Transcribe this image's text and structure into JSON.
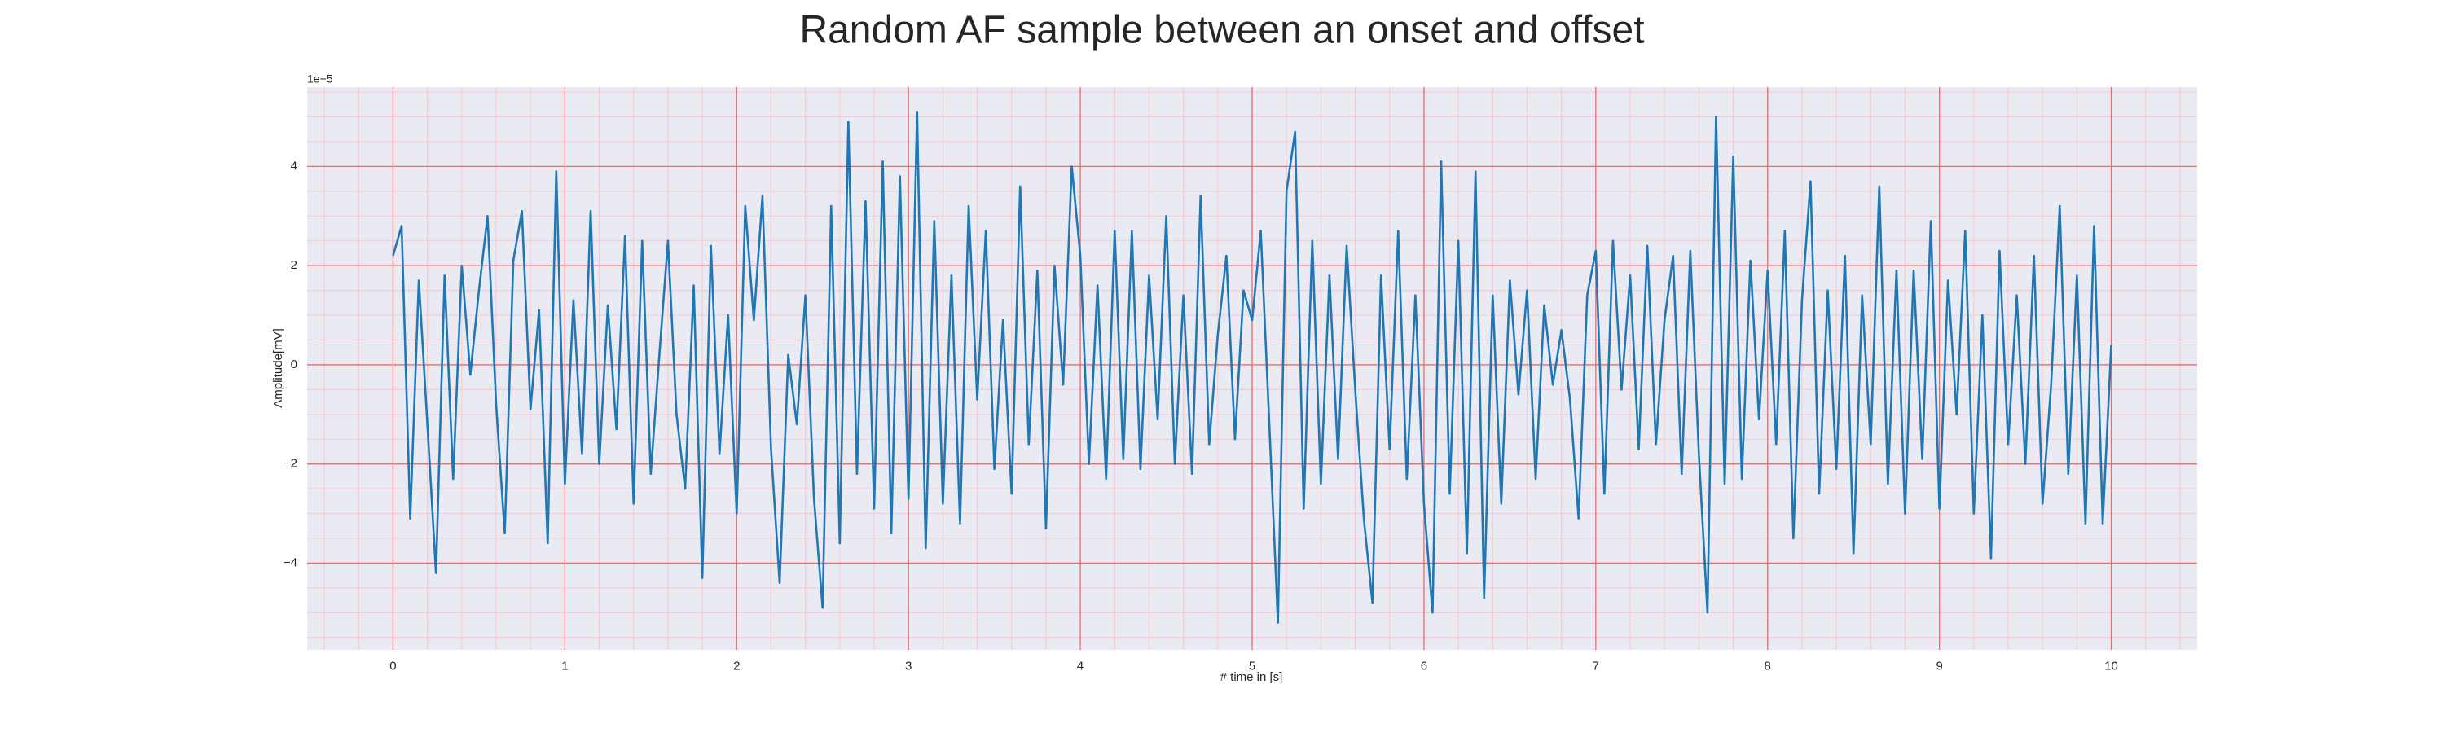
{
  "chart_data": {
    "type": "line",
    "title": "Random AF sample between an onset and offset",
    "xlabel": "# time in [s]",
    "ylabel": "Amplitude[mV]",
    "y_offset_label": "1e−5",
    "color": "#1f77b4",
    "grid": true,
    "grid_color": "#ee6a6a",
    "minor_grid": true,
    "minor_grid_color": "#f5c9cd",
    "background": "#eaeaf2",
    "xlim": [
      -0.5,
      10.5
    ],
    "ylim": [
      -5.75,
      5.6
    ],
    "xticks": [
      0,
      1,
      2,
      3,
      4,
      5,
      6,
      7,
      8,
      9,
      10
    ],
    "yticks": [
      {
        "value": -4,
        "label": "−4"
      },
      {
        "value": -2,
        "label": "−2"
      },
      0,
      2,
      4
    ],
    "xminorticks": [
      -0.4,
      -0.2,
      0.2,
      0.4,
      0.6,
      0.8,
      1.2,
      1.4,
      1.6,
      1.8,
      2.2,
      2.4,
      2.6,
      2.8,
      3.2,
      3.4,
      3.6,
      3.8,
      4.2,
      4.4,
      4.6,
      4.8,
      5.2,
      5.4,
      5.6,
      5.8,
      6.2,
      6.4,
      6.6,
      6.8,
      7.2,
      7.4,
      7.6,
      7.8,
      8.2,
      8.4,
      8.6,
      8.8,
      9.2,
      9.4,
      9.6,
      9.8,
      10.2,
      10.4
    ],
    "yminorticks": [
      -5.5,
      -5,
      -4.5,
      -3.5,
      -3,
      -2.5,
      -1.5,
      -1,
      -0.5,
      0.5,
      1,
      1.5,
      2.5,
      3,
      3.5,
      4.5,
      5,
      5.5
    ],
    "x": [
      0,
      0.05,
      0.1,
      0.15,
      0.2,
      0.25,
      0.3,
      0.35,
      0.4,
      0.45,
      0.5,
      0.55,
      0.6,
      0.65,
      0.7,
      0.75,
      0.8,
      0.85,
      0.9,
      0.95,
      1,
      1.05,
      1.1,
      1.15,
      1.2,
      1.25,
      1.3,
      1.35,
      1.4,
      1.45,
      1.5,
      1.55,
      1.6,
      1.65,
      1.7,
      1.75,
      1.8,
      1.85,
      1.9,
      1.95,
      2,
      2.05,
      2.1,
      2.15,
      2.2,
      2.25,
      2.3,
      2.35,
      2.4,
      2.45,
      2.5,
      2.55,
      2.6,
      2.65,
      2.7,
      2.75,
      2.8,
      2.85,
      2.9,
      2.95,
      3,
      3.05,
      3.1,
      3.15,
      3.2,
      3.25,
      3.3,
      3.35,
      3.4,
      3.45,
      3.5,
      3.55,
      3.6,
      3.65,
      3.7,
      3.75,
      3.8,
      3.85,
      3.9,
      3.95,
      4,
      4.05,
      4.1,
      4.15,
      4.2,
      4.25,
      4.3,
      4.35,
      4.4,
      4.45,
      4.5,
      4.55,
      4.6,
      4.65,
      4.7,
      4.75,
      4.8,
      4.85,
      4.9,
      4.95,
      5,
      5.05,
      5.1,
      5.15,
      5.2,
      5.25,
      5.3,
      5.35,
      5.4,
      5.45,
      5.5,
      5.55,
      5.6,
      5.65,
      5.7,
      5.75,
      5.8,
      5.85,
      5.9,
      5.95,
      6,
      6.05,
      6.1,
      6.15,
      6.2,
      6.25,
      6.3,
      6.35,
      6.4,
      6.45,
      6.5,
      6.55,
      6.6,
      6.65,
      6.7,
      6.75,
      6.8,
      6.85,
      6.9,
      6.95,
      7,
      7.05,
      7.1,
      7.15,
      7.2,
      7.25,
      7.3,
      7.35,
      7.4,
      7.45,
      7.5,
      7.55,
      7.6,
      7.65,
      7.7,
      7.75,
      7.8,
      7.85,
      7.9,
      7.95,
      8,
      8.05,
      8.1,
      8.15,
      8.2,
      8.25,
      8.3,
      8.35,
      8.4,
      8.45,
      8.5,
      8.55,
      8.6,
      8.65,
      8.7,
      8.75,
      8.8,
      8.85,
      8.9,
      8.95,
      9,
      9.05,
      9.1,
      9.15,
      9.2,
      9.25,
      9.3,
      9.35,
      9.4,
      9.45,
      9.5,
      9.55,
      9.6,
      9.65,
      9.7,
      9.75,
      9.8,
      9.85,
      9.9,
      9.95,
      10
    ],
    "values": [
      2.2,
      2.8,
      -3.1,
      1.7,
      -1.2,
      -4.2,
      1.8,
      -2.3,
      2.0,
      -0.2,
      1.5,
      3.0,
      -0.8,
      -3.4,
      2.1,
      3.1,
      -0.9,
      1.1,
      -3.6,
      3.9,
      -2.4,
      1.3,
      -1.8,
      3.1,
      -2.0,
      1.2,
      -1.3,
      2.6,
      -2.8,
      2.5,
      -2.2,
      0.2,
      2.5,
      -1.0,
      -2.5,
      1.6,
      -4.3,
      2.4,
      -1.8,
      1.0,
      -3.0,
      3.2,
      0.9,
      3.4,
      -1.7,
      -4.4,
      0.2,
      -1.2,
      1.4,
      -2.7,
      -4.9,
      3.2,
      -3.6,
      4.9,
      -2.2,
      3.3,
      -2.9,
      4.1,
      -3.4,
      3.8,
      -2.7,
      5.1,
      -3.7,
      2.9,
      -2.8,
      1.8,
      -3.2,
      3.2,
      -0.7,
      2.7,
      -2.1,
      0.9,
      -2.6,
      3.6,
      -1.6,
      1.9,
      -3.3,
      2.0,
      -0.4,
      4.0,
      2.2,
      -2.0,
      1.6,
      -2.3,
      2.7,
      -1.9,
      2.7,
      -2.1,
      1.8,
      -1.1,
      3.0,
      -2.0,
      1.4,
      -2.2,
      3.4,
      -1.6,
      0.6,
      2.2,
      -1.5,
      1.5,
      0.9,
      2.7,
      -1.2,
      -5.2,
      3.5,
      4.7,
      -2.9,
      2.5,
      -2.4,
      1.8,
      -1.9,
      2.4,
      -0.5,
      -3.1,
      -4.8,
      1.8,
      -1.7,
      2.7,
      -2.3,
      1.4,
      -2.8,
      -5.0,
      4.1,
      -2.6,
      2.5,
      -3.8,
      3.9,
      -4.7,
      1.4,
      -2.8,
      1.7,
      -0.6,
      1.5,
      -2.3,
      1.2,
      -0.4,
      0.7,
      -0.7,
      -3.1,
      1.4,
      2.3,
      -2.6,
      2.5,
      -0.5,
      1.8,
      -1.7,
      2.4,
      -1.6,
      0.9,
      2.2,
      -2.2,
      2.3,
      -1.8,
      -5.0,
      5.0,
      -2.4,
      4.2,
      -2.3,
      2.1,
      -1.1,
      1.9,
      -1.6,
      2.7,
      -3.5,
      1.3,
      3.7,
      -2.6,
      1.5,
      -2.1,
      2.2,
      -3.8,
      1.4,
      -1.6,
      3.6,
      -2.4,
      1.9,
      -3.0,
      1.9,
      -1.9,
      2.9,
      -2.9,
      1.7,
      -1.0,
      2.7,
      -3.0,
      1.0,
      -3.9,
      2.3,
      -1.6,
      1.4,
      -2.0,
      2.2,
      -2.8,
      -0.4,
      3.2,
      -2.2,
      1.8,
      -3.2,
      2.8,
      -3.2,
      0.4
    ]
  }
}
